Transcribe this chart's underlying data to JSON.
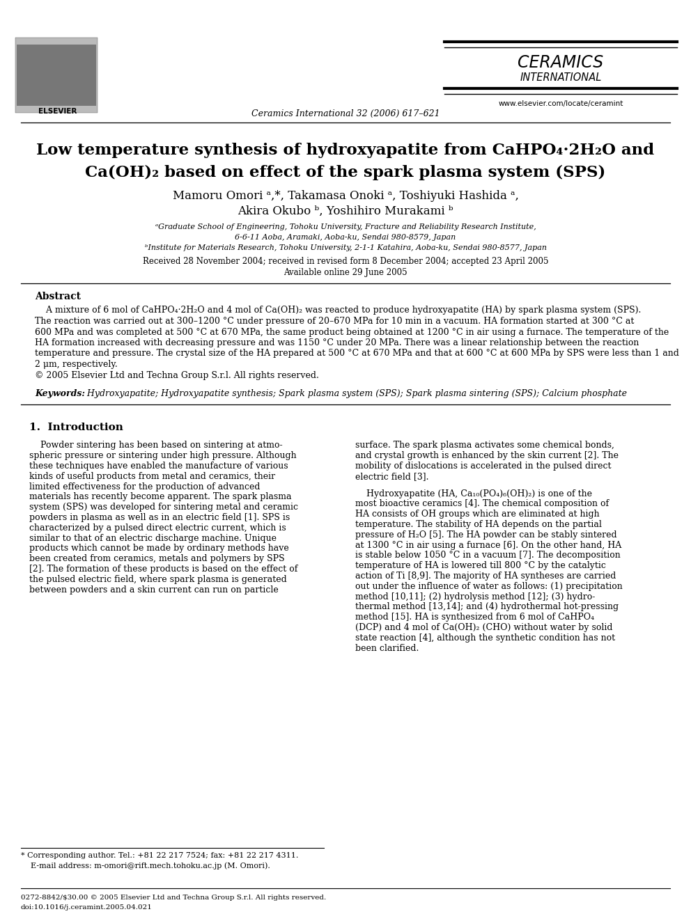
{
  "bg_color": "#ffffff",
  "title_line1": "Low temperature synthesis of hydroxyapatite from CaHPO₄·2H₂O and",
  "title_line2": "Ca(OH)₂ based on effect of the spark plasma system (SPS)",
  "journal_name": "CERAMICS",
  "journal_sub": "INTERNATIONAL",
  "journal_ref": "Ceramics International 32 (2006) 617–621",
  "journal_url": "www.elsevier.com/locate/ceramint",
  "authors_line1": "Mamoru Omori ᵃ,*, Takamasa Onoki ᵃ, Toshiyuki Hashida ᵃ,",
  "authors_line2": "Akira Okubo ᵇ, Yoshihiro Murakami ᵇ",
  "affil_a": "ᵃGraduate School of Engineering, Tohoku University, Fracture and Reliability Research Institute,",
  "affil_a2": "6-6-11 Aoba, Aramaki, Aoba-ku, Sendai 980-8579, Japan",
  "affil_b": "ᵇInstitute for Materials Research, Tohoku University, 2-1-1 Katahira, Aoba-ku, Sendai 980-8577, Japan",
  "received": "Received 28 November 2004; received in revised form 8 December 2004; accepted 23 April 2005",
  "available": "Available online 29 June 2005",
  "abstract_title": "Abstract",
  "abstract_lines": [
    "    A mixture of 6 mol of CaHPO₄·2H₂O and 4 mol of Ca(OH)₂ was reacted to produce hydroxyapatite (HA) by spark plasma system (SPS).",
    "The reaction was carried out at 300–1200 °C under pressure of 20–670 MPa for 10 min in a vacuum. HA formation started at 300 °C at",
    "600 MPa and was completed at 500 °C at 670 MPa, the same product being obtained at 1200 °C in air using a furnace. The temperature of the",
    "HA formation increased with decreasing pressure and was 1150 °C under 20 MPa. There was a linear relationship between the reaction",
    "temperature and pressure. The crystal size of the HA prepared at 500 °C at 670 MPa and that at 600 °C at 600 MPa by SPS were less than 1 and",
    "2 μm, respectively.",
    "© 2005 Elsevier Ltd and Techna Group S.r.l. All rights reserved."
  ],
  "keywords_label": "Keywords:",
  "keywords_text": "  Hydroxyapatite; Hydroxyapatite synthesis; Spark plasma system (SPS); Spark plasma sintering (SPS); Calcium phosphate",
  "section1_title": "1.  Introduction",
  "col1_lines": [
    "    Powder sintering has been based on sintering at atmo-",
    "spheric pressure or sintering under high pressure. Although",
    "these techniques have enabled the manufacture of various",
    "kinds of useful products from metal and ceramics, their",
    "limited effectiveness for the production of advanced",
    "materials has recently become apparent. The spark plasma",
    "system (SPS) was developed for sintering metal and ceramic",
    "powders in plasma as well as in an electric field [1]. SPS is",
    "characterized by a pulsed direct electric current, which is",
    "similar to that of an electric discharge machine. Unique",
    "products which cannot be made by ordinary methods have",
    "been created from ceramics, metals and polymers by SPS",
    "[2]. The formation of these products is based on the effect of",
    "the pulsed electric field, where spark plasma is generated",
    "between powders and a skin current can run on particle"
  ],
  "col2_lines_p1": [
    "surface. The spark plasma activates some chemical bonds,",
    "and crystal growth is enhanced by the skin current [2]. The",
    "mobility of dislocations is accelerated in the pulsed direct",
    "electric field [3]."
  ],
  "col2_lines_p2": [
    "    Hydroxyapatite (HA, Ca₁₀(PO₄)₆(OH)₂) is one of the",
    "most bioactive ceramics [4]. The chemical composition of",
    "HA consists of OH groups which are eliminated at high",
    "temperature. The stability of HA depends on the partial",
    "pressure of H₂O [5]. The HA powder can be stably sintered",
    "at 1300 °C in air using a furnace [6]. On the other hand, HA",
    "is stable below 1050 °C in a vacuum [7]. The decomposition",
    "temperature of HA is lowered till 800 °C by the catalytic",
    "action of Ti [8,9]. The majority of HA syntheses are carried",
    "out under the influence of water as follows: (1) precipitation",
    "method [10,11]; (2) hydrolysis method [12]; (3) hydro-",
    "thermal method [13,14]; and (4) hydrothermal hot-pressing",
    "method [15]. HA is synthesized from 6 mol of CaHPO₄",
    "(DCP) and 4 mol of Ca(OH)₂ (CHO) without water by solid",
    "state reaction [4], although the synthetic condition has not",
    "been clarified."
  ],
  "footnote_star": "* Corresponding author. Tel.: +81 22 217 7524; fax: +81 22 217 4311.",
  "footnote_email": "    E-mail address: m-omori@rift.mech.tohoku.ac.jp (M. Omori).",
  "footer_issn": "0272-8842/$30.00 © 2005 Elsevier Ltd and Techna Group S.r.l. All rights reserved.",
  "footer_doi": "doi:10.1016/j.ceramint.2005.04.021"
}
